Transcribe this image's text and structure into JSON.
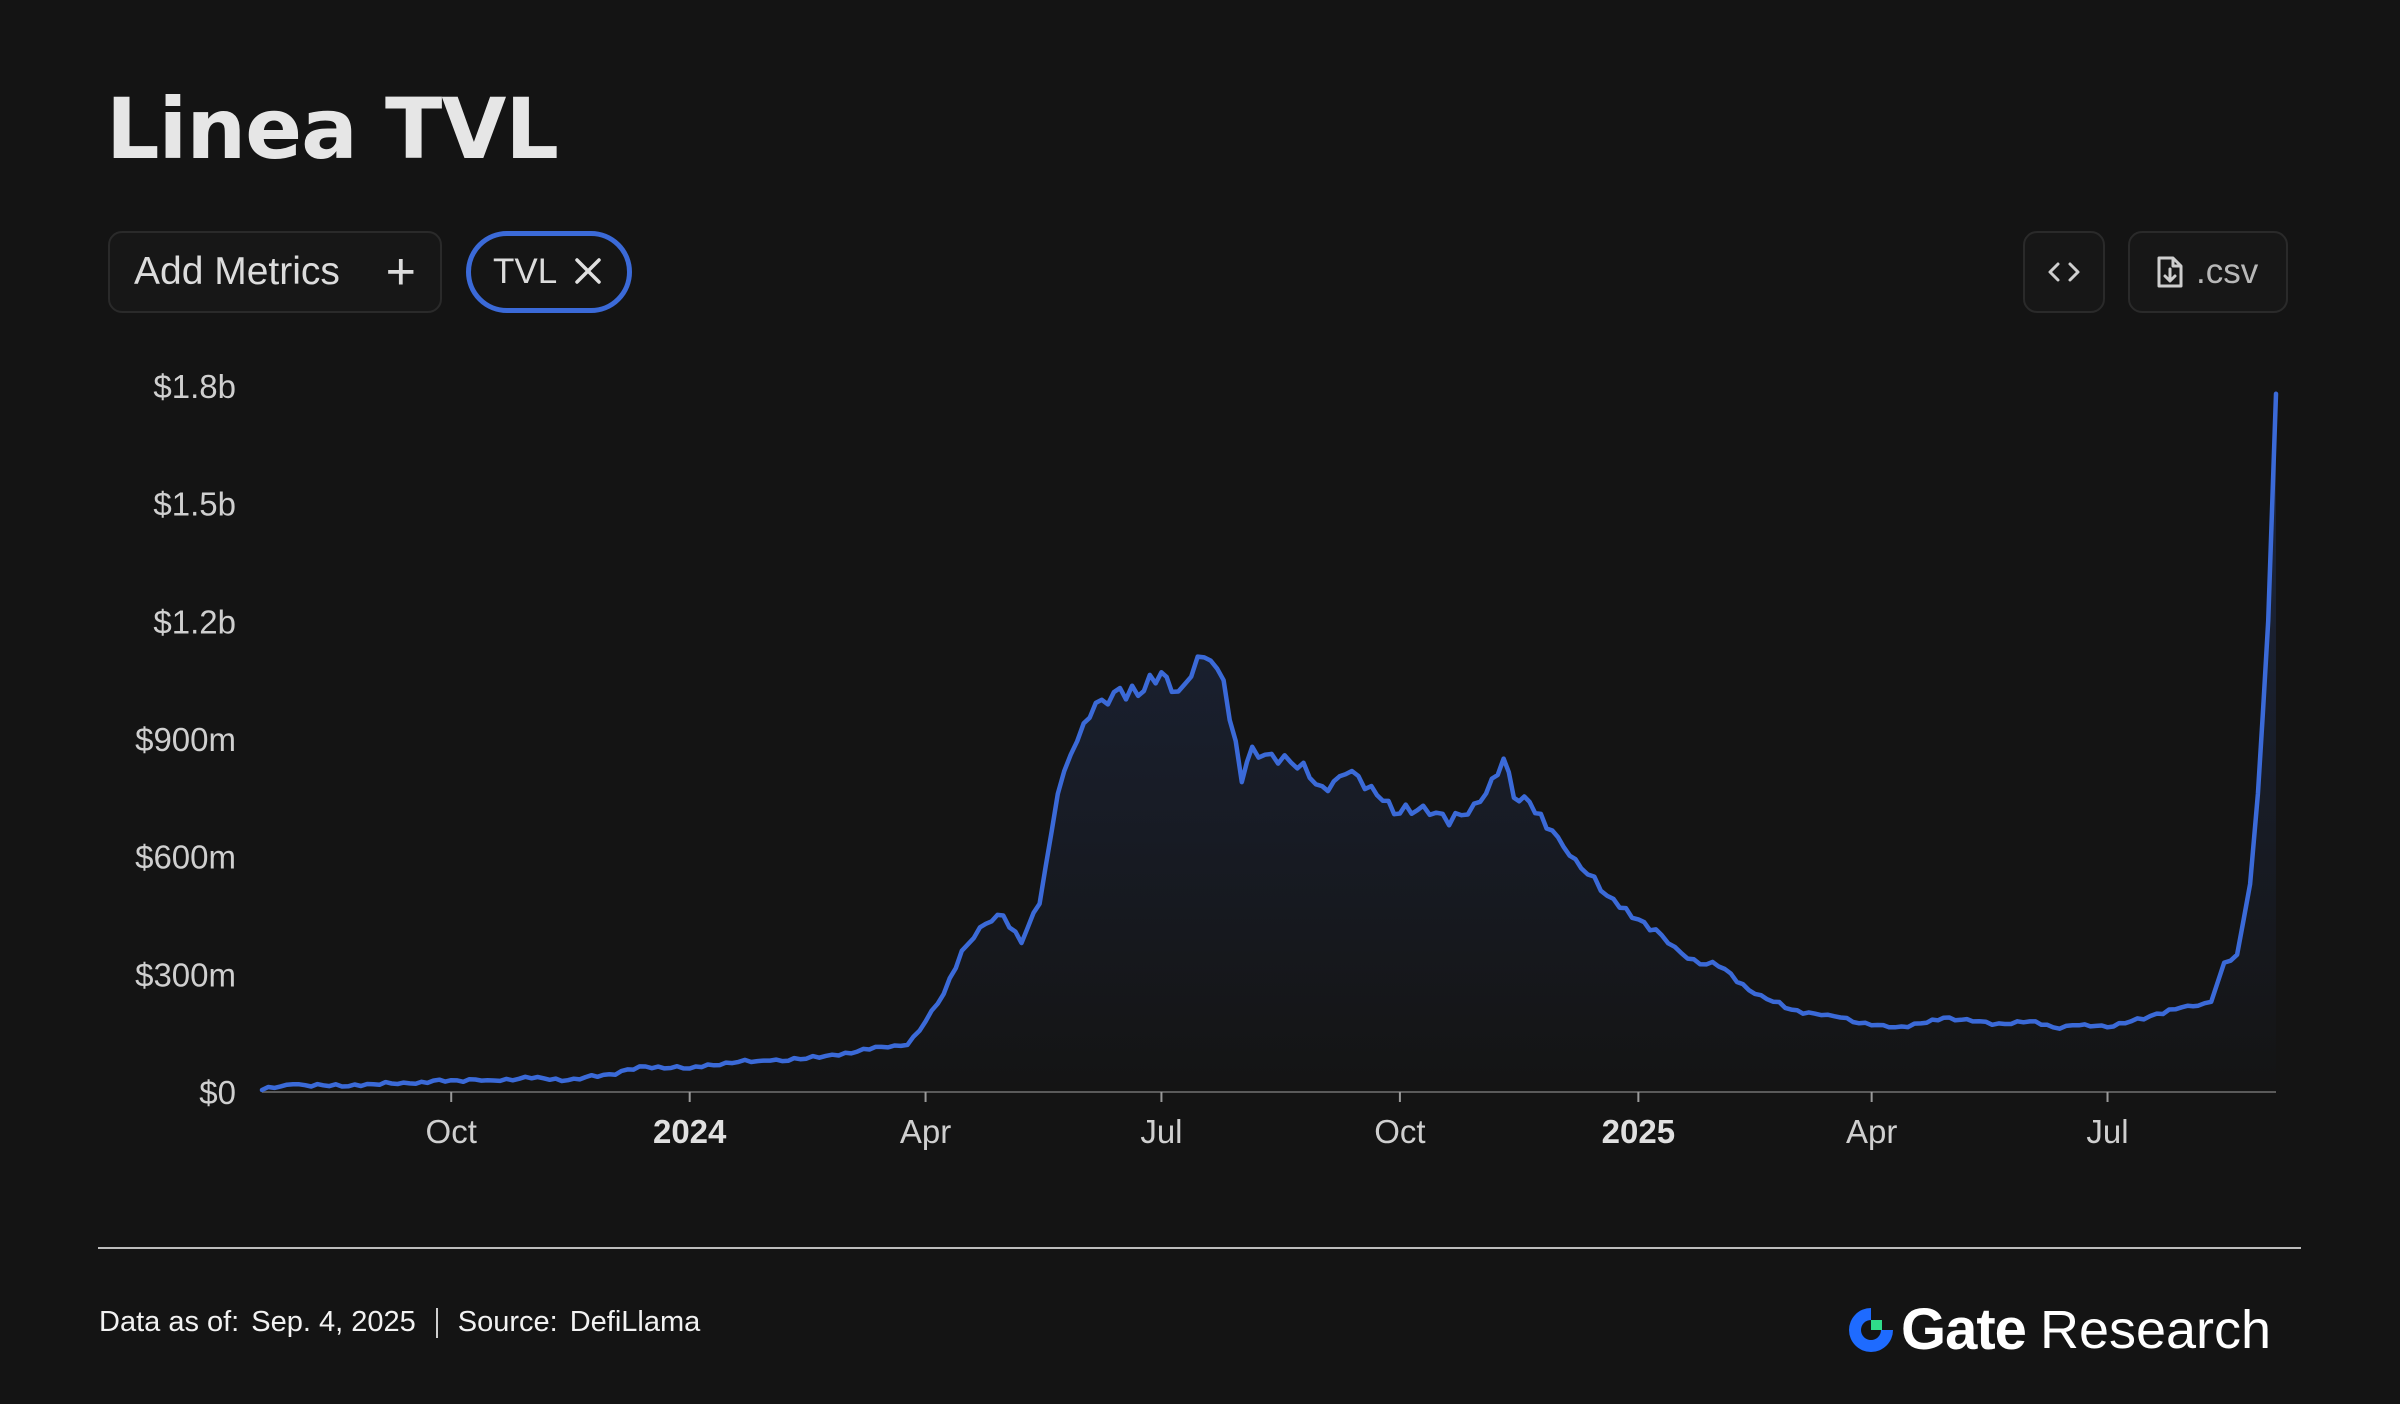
{
  "page": {
    "title": "Linea TVL"
  },
  "toolbar": {
    "add_metrics_label": "Add Metrics",
    "metric_chip_label": "TVL",
    "csv_label": ".csv"
  },
  "icons": {
    "add": "plus-icon",
    "remove": "close-icon",
    "embed": "code-icon",
    "download": "file-download-icon",
    "brand": "gate-logo-icon"
  },
  "colors": {
    "background": "#141414",
    "line": "#3b6ad8",
    "brand_blue": "#1e6bff",
    "brand_green": "#2fdc8a"
  },
  "footer": {
    "data_as_of_label": "Data as of:",
    "data_as_of_value": "Sep. 4, 2025",
    "source_label": "Source:",
    "source_value": "DefiLlama"
  },
  "brand": {
    "name": "Gate",
    "suffix": "Research"
  },
  "chart_data": {
    "type": "area",
    "title": "Linea TVL",
    "series": [
      {
        "x": [
          "2023-07-20",
          "2023-08-01",
          "2023-08-15",
          "2023-09-01",
          "2023-09-15",
          "2023-10-01",
          "2023-10-15",
          "2023-11-01",
          "2023-11-15",
          "2023-12-01",
          "2023-12-15",
          "2024-01-01",
          "2024-01-15",
          "2024-02-01",
          "2024-02-15",
          "2024-03-01",
          "2024-03-15",
          "2024-03-25",
          "2024-04-01",
          "2024-04-08",
          "2024-04-15",
          "2024-04-22",
          "2024-05-01",
          "2024-05-08",
          "2024-05-15",
          "2024-05-22",
          "2024-05-27",
          "2024-06-01",
          "2024-06-08",
          "2024-06-15",
          "2024-06-22",
          "2024-07-01",
          "2024-07-05",
          "2024-07-10",
          "2024-07-15",
          "2024-07-20",
          "2024-07-25",
          "2024-08-01",
          "2024-08-05",
          "2024-08-10",
          "2024-08-20",
          "2024-09-01",
          "2024-09-10",
          "2024-09-20",
          "2024-10-01",
          "2024-10-10",
          "2024-10-20",
          "2024-11-01",
          "2024-11-10",
          "2024-11-14",
          "2024-11-20",
          "2024-12-01",
          "2024-12-10",
          "2024-12-20",
          "2025-01-01",
          "2025-01-10",
          "2025-01-20",
          "2025-02-01",
          "2025-02-15",
          "2025-03-01",
          "2025-03-10",
          "2025-03-20",
          "2025-04-01",
          "2025-04-10",
          "2025-04-20",
          "2025-05-01",
          "2025-05-10",
          "2025-05-20",
          "2025-06-01",
          "2025-06-10",
          "2025-06-20",
          "2025-07-01",
          "2025-07-10",
          "2025-07-20",
          "2025-08-01",
          "2025-08-05",
          "2025-08-10",
          "2025-08-15",
          "2025-08-20",
          "2025-08-25",
          "2025-08-28",
          "2025-09-01",
          "2025-09-04"
        ],
        "y": [
          5,
          20,
          15,
          20,
          22,
          30,
          30,
          35,
          30,
          45,
          65,
          60,
          75,
          80,
          85,
          100,
          115,
          120,
          180,
          250,
          360,
          420,
          450,
          380,
          480,
          760,
          860,
          940,
          1000,
          1030,
          1010,
          1070,
          1020,
          1040,
          1110,
          1100,
          1050,
          790,
          880,
          860,
          840,
          780,
          810,
          780,
          710,
          730,
          680,
          740,
          850,
          750,
          740,
          650,
          570,
          500,
          440,
          400,
          340,
          320,
          250,
          210,
          200,
          190,
          170,
          165,
          175,
          190,
          180,
          175,
          180,
          165,
          170,
          165,
          180,
          200,
          220,
          220,
          230,
          330,
          350,
          530,
          760,
          1200,
          1780
        ]
      }
    ],
    "xticks": [
      "Oct",
      "2024",
      "Apr",
      "Jul",
      "Oct",
      "2025",
      "Apr",
      "Jul"
    ],
    "yticks": [
      "$0",
      "$300m",
      "$600m",
      "$900m",
      "$1.2b",
      "$1.5b",
      "$1.8b"
    ],
    "ylim": [
      0,
      1800000000
    ],
    "grid": false,
    "legend": "none"
  }
}
